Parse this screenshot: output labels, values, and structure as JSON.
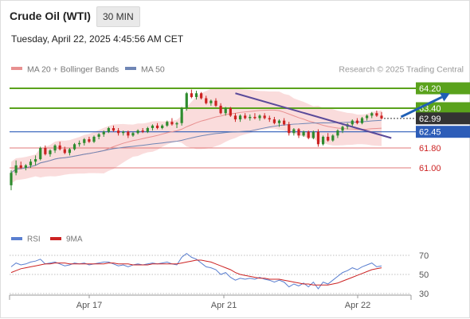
{
  "header": {
    "instrument": "Crude Oil (WTI)",
    "timeframe": "30 MIN",
    "datetime": "Tuesday, April 22, 2025 4:45:56 AM CET"
  },
  "legend": {
    "ma20_bb": "MA 20 + Bollinger Bands",
    "ma50": "MA 50",
    "credit": "Research © 2025 Trading Central",
    "rsi": "RSI",
    "rsi_ma": "9MA"
  },
  "colors": {
    "up_candle": "#2e8b2e",
    "down_candle": "#cc2222",
    "bollinger_fill": "#f9d6d6",
    "ma20": "#e89090",
    "ma50": "#6f86b5",
    "resistance_line": "#5aa21c",
    "pivot_line": "#2d5db8",
    "support_line": "#e07878",
    "trendline": "#5a4a9a",
    "arrow": "#1f5fb5",
    "last_price_tag": "#333333",
    "rsi_line": "#5a7fd0",
    "rsi_ma_line": "#cc2222"
  },
  "chart_data": [
    {
      "type": "line",
      "subtype": "candlestick",
      "x_ticks": [
        "Apr 17",
        "Apr 21",
        "Apr 22"
      ],
      "levels": [
        {
          "value": 64.2,
          "label": "64.20",
          "kind": "resistance"
        },
        {
          "value": 63.4,
          "label": "63.40",
          "kind": "resistance"
        },
        {
          "value": 62.99,
          "label": "62.99",
          "kind": "last_price"
        },
        {
          "value": 62.45,
          "label": "62.45",
          "kind": "pivot"
        },
        {
          "value": 61.8,
          "label": "61.80",
          "kind": "support"
        },
        {
          "value": 61.0,
          "label": "61.00",
          "kind": "support"
        }
      ],
      "trendline": {
        "from": [
          46,
          64.0
        ],
        "to": [
          78,
          62.2
        ]
      },
      "forecast_arrow": {
        "from": [
          80,
          63.05
        ],
        "to": [
          90,
          64.0
        ]
      },
      "series": [
        {
          "name": "MA 20 + Bollinger Bands",
          "values": [],
          "candles_ohlc": [
            [
              60.3,
              60.9,
              60.1,
              60.8
            ],
            [
              60.8,
              61.3,
              60.7,
              61.1
            ],
            [
              61.1,
              61.25,
              60.95,
              61.0
            ],
            [
              61.0,
              61.15,
              60.9,
              61.1
            ],
            [
              61.1,
              61.35,
              61.0,
              61.25
            ],
            [
              61.25,
              61.5,
              61.1,
              61.35
            ],
            [
              61.35,
              61.85,
              61.3,
              61.8
            ],
            [
              61.8,
              61.9,
              61.5,
              61.55
            ],
            [
              61.55,
              61.75,
              61.45,
              61.7
            ],
            [
              61.7,
              61.95,
              61.6,
              61.9
            ],
            [
              61.9,
              62.05,
              61.7,
              61.75
            ],
            [
              61.75,
              61.85,
              61.55,
              61.6
            ],
            [
              61.6,
              61.8,
              61.5,
              61.75
            ],
            [
              61.75,
              62.0,
              61.7,
              61.95
            ],
            [
              61.95,
              62.1,
              61.85,
              62.0
            ],
            [
              62.0,
              62.2,
              61.9,
              62.15
            ],
            [
              62.15,
              62.25,
              62.0,
              62.05
            ],
            [
              62.05,
              62.3,
              62.0,
              62.25
            ],
            [
              62.25,
              62.4,
              62.15,
              62.35
            ],
            [
              62.35,
              62.5,
              62.25,
              62.45
            ],
            [
              62.45,
              62.65,
              62.4,
              62.6
            ],
            [
              62.6,
              62.7,
              62.45,
              62.5
            ],
            [
              62.5,
              62.6,
              62.3,
              62.4
            ],
            [
              62.4,
              62.5,
              62.3,
              62.45
            ],
            [
              62.45,
              62.5,
              62.2,
              62.3
            ],
            [
              62.3,
              62.45,
              62.25,
              62.4
            ],
            [
              62.4,
              62.55,
              62.35,
              62.5
            ],
            [
              62.5,
              62.6,
              62.4,
              62.45
            ],
            [
              62.45,
              62.65,
              62.4,
              62.6
            ],
            [
              62.6,
              62.75,
              62.5,
              62.7
            ],
            [
              62.7,
              62.8,
              62.55,
              62.6
            ],
            [
              62.6,
              62.75,
              62.55,
              62.7
            ],
            [
              62.7,
              62.9,
              62.65,
              62.85
            ],
            [
              62.85,
              63.0,
              62.7,
              62.75
            ],
            [
              62.75,
              62.85,
              62.6,
              62.8
            ],
            [
              62.8,
              63.45,
              62.7,
              63.4
            ],
            [
              63.4,
              64.05,
              63.3,
              64.0
            ],
            [
              64.0,
              64.15,
              63.8,
              63.85
            ],
            [
              63.85,
              64.1,
              63.75,
              64.0
            ],
            [
              64.0,
              64.05,
              63.75,
              63.8
            ],
            [
              63.8,
              63.9,
              63.55,
              63.6
            ],
            [
              63.6,
              63.75,
              63.5,
              63.7
            ],
            [
              63.7,
              63.8,
              63.45,
              63.5
            ],
            [
              63.5,
              63.6,
              63.15,
              63.2
            ],
            [
              63.2,
              63.45,
              63.1,
              63.4
            ],
            [
              63.4,
              63.45,
              63.05,
              63.1
            ],
            [
              63.1,
              63.2,
              62.85,
              62.95
            ],
            [
              62.95,
              63.15,
              62.85,
              63.1
            ],
            [
              63.1,
              63.2,
              62.95,
              63.0
            ],
            [
              63.0,
              63.15,
              62.9,
              63.05
            ],
            [
              63.05,
              63.2,
              62.95,
              63.0
            ],
            [
              63.0,
              63.15,
              62.9,
              63.1
            ],
            [
              63.1,
              63.2,
              62.95,
              63.0
            ],
            [
              63.0,
              63.1,
              62.85,
              62.95
            ],
            [
              62.95,
              63.05,
              62.75,
              62.8
            ],
            [
              62.8,
              62.95,
              62.65,
              62.9
            ],
            [
              62.9,
              63.0,
              62.7,
              62.75
            ],
            [
              62.75,
              62.85,
              62.3,
              62.4
            ],
            [
              62.4,
              62.6,
              62.3,
              62.55
            ],
            [
              62.55,
              62.6,
              62.2,
              62.3
            ],
            [
              62.3,
              62.5,
              62.25,
              62.45
            ],
            [
              62.45,
              62.5,
              62.15,
              62.2
            ],
            [
              62.2,
              62.5,
              62.15,
              62.45
            ],
            [
              62.45,
              62.55,
              61.85,
              61.95
            ],
            [
              61.95,
              62.3,
              61.9,
              62.25
            ],
            [
              62.25,
              62.4,
              62.05,
              62.1
            ],
            [
              62.1,
              62.35,
              62.05,
              62.3
            ],
            [
              62.3,
              62.55,
              62.2,
              62.5
            ],
            [
              62.5,
              62.7,
              62.4,
              62.65
            ],
            [
              62.65,
              62.8,
              62.55,
              62.75
            ],
            [
              62.75,
              62.95,
              62.65,
              62.9
            ],
            [
              62.9,
              63.0,
              62.75,
              62.8
            ],
            [
              62.8,
              63.05,
              62.75,
              63.0
            ],
            [
              63.0,
              63.15,
              62.9,
              63.1
            ],
            [
              63.1,
              63.25,
              63.0,
              63.2
            ],
            [
              63.2,
              63.3,
              63.05,
              63.1
            ],
            [
              63.1,
              63.25,
              62.95,
              62.99
            ]
          ]
        },
        {
          "name": "MA 50",
          "values": []
        },
        {
          "name": "RSI",
          "values": [
            58,
            62,
            60,
            61,
            63,
            64,
            66,
            61,
            62,
            63,
            61,
            59,
            60,
            62,
            61,
            62,
            60,
            61,
            62,
            63,
            63,
            61,
            59,
            60,
            58,
            60,
            61,
            60,
            61,
            62,
            61,
            62,
            63,
            61,
            60,
            68,
            72,
            68,
            66,
            62,
            58,
            57,
            55,
            50,
            52,
            47,
            44,
            46,
            45,
            46,
            45,
            47,
            45,
            44,
            42,
            44,
            42,
            37,
            40,
            38,
            41,
            37,
            42,
            35,
            42,
            40,
            44,
            48,
            52,
            54,
            57,
            55,
            58,
            60,
            62,
            58,
            59
          ]
        },
        {
          "name": "9MA",
          "values": [
            52,
            54,
            56,
            57,
            58,
            59,
            60,
            61,
            61,
            62,
            62,
            62,
            61,
            61,
            61,
            61,
            61,
            61,
            61,
            61,
            62,
            62,
            61,
            61,
            61,
            60,
            60,
            60,
            60,
            61,
            61,
            61,
            61,
            61,
            61,
            62,
            63,
            64,
            65,
            65,
            64,
            63,
            61,
            59,
            57,
            55,
            52,
            50,
            49,
            48,
            47,
            46,
            46,
            45,
            45,
            45,
            44,
            43,
            42,
            41,
            40,
            40,
            39,
            39,
            39,
            39,
            40,
            41,
            43,
            45,
            47,
            49,
            51,
            53,
            55,
            56,
            57
          ]
        }
      ],
      "y_ticks_rsi": [
        "70",
        "50",
        "30"
      ],
      "rsi_range": [
        20,
        80
      ]
    }
  ]
}
